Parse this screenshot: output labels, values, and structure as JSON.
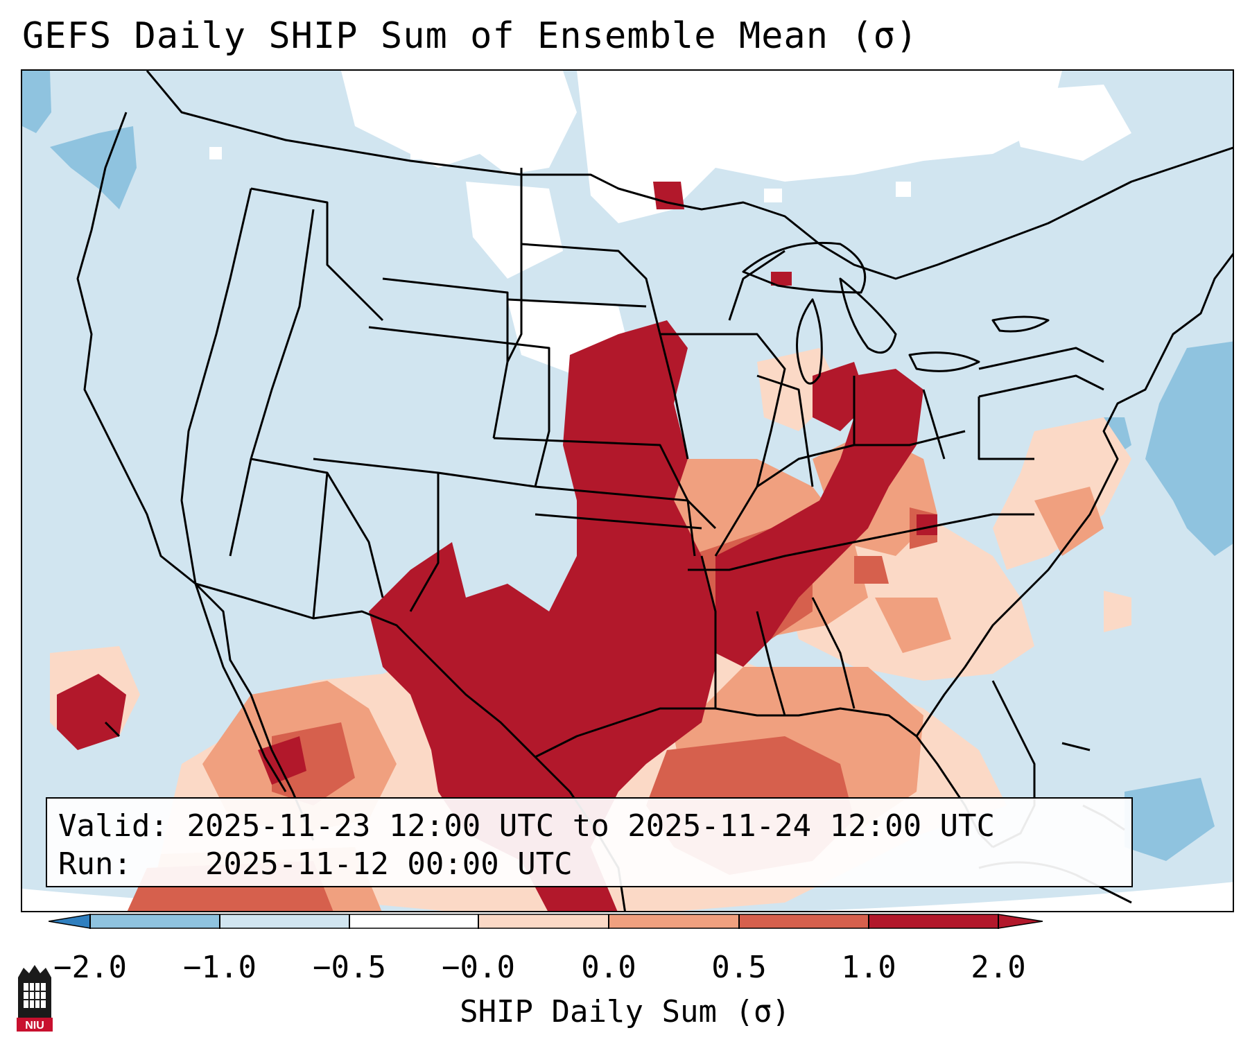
{
  "title": "GEFS Daily SHIP Sum of Ensemble Mean (σ)",
  "info": {
    "valid_label": "Valid:",
    "valid_value": "2025-11-23 12:00 UTC to 2025-11-24 12:00 UTC",
    "run_label": "Run:",
    "run_value": "2025-11-12 00:00 UTC"
  },
  "colorbar": {
    "label": "SHIP Daily Sum (σ)",
    "ticks": [
      "−2.0",
      "−1.0",
      "−0.5",
      "−0.0",
      "0.0",
      "0.5",
      "1.0",
      "2.0"
    ],
    "colors": [
      "#2f7fbf",
      "#8fc3df",
      "#d1e5f0",
      "#ffffff",
      "#fbd9c6",
      "#f0a07f",
      "#d6604d",
      "#b2182b"
    ]
  },
  "logo": {
    "text": "NIU"
  },
  "colors": {
    "ocean": "#d1e5f0",
    "strong_positive": "#b2182b",
    "positive": "#d6604d",
    "weak_positive": "#f0a07f",
    "very_weak_positive": "#fbd9c6",
    "negative": "#8fc3df",
    "neutral": "#ffffff"
  }
}
